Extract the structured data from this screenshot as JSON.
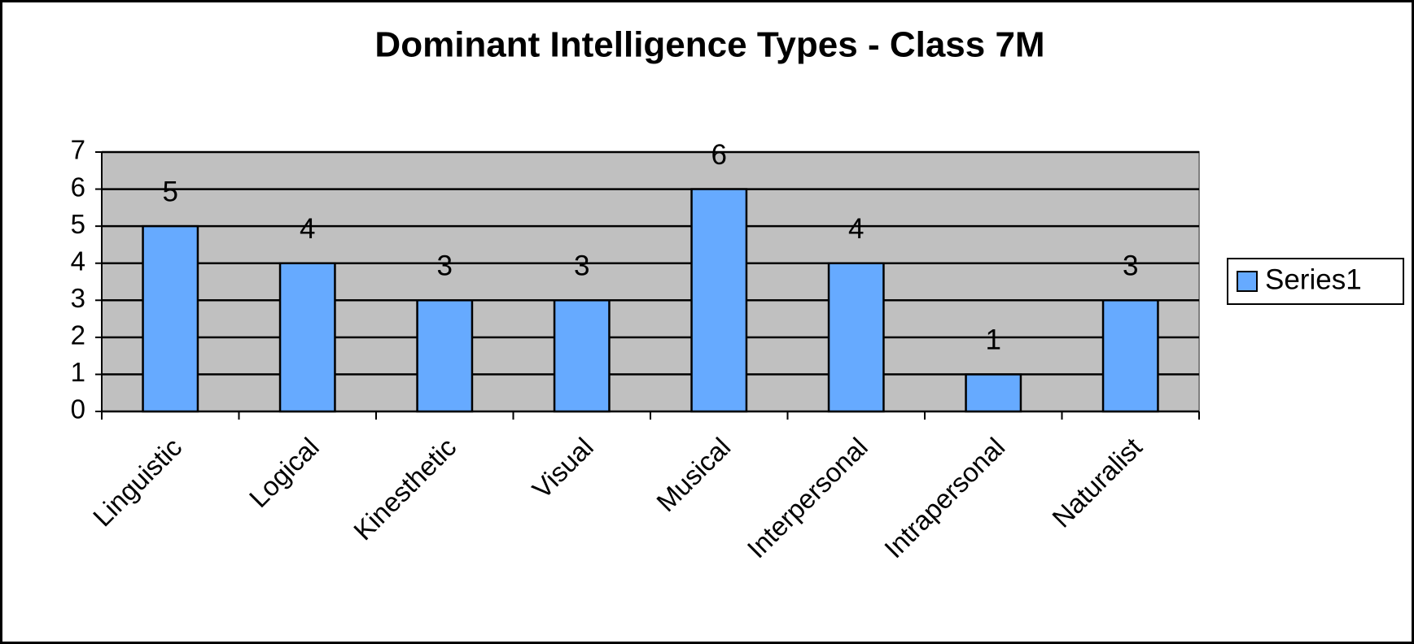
{
  "chart_data": {
    "type": "bar",
    "title": "Dominant Intelligence Types - Class 7M",
    "categories": [
      "Linguistic",
      "Logical",
      "Kinesthetic",
      "Visual",
      "Musical",
      "Interpersonal",
      "Intrapersonal",
      "Naturalist"
    ],
    "series": [
      {
        "name": "Series1",
        "color": "#66aaff",
        "values": [
          5,
          4,
          3,
          3,
          6,
          4,
          1,
          3
        ]
      }
    ],
    "ylim": [
      0,
      7
    ],
    "yticks": [
      0,
      1,
      2,
      3,
      4,
      5,
      6,
      7
    ],
    "grid": true,
    "legend": "right"
  }
}
